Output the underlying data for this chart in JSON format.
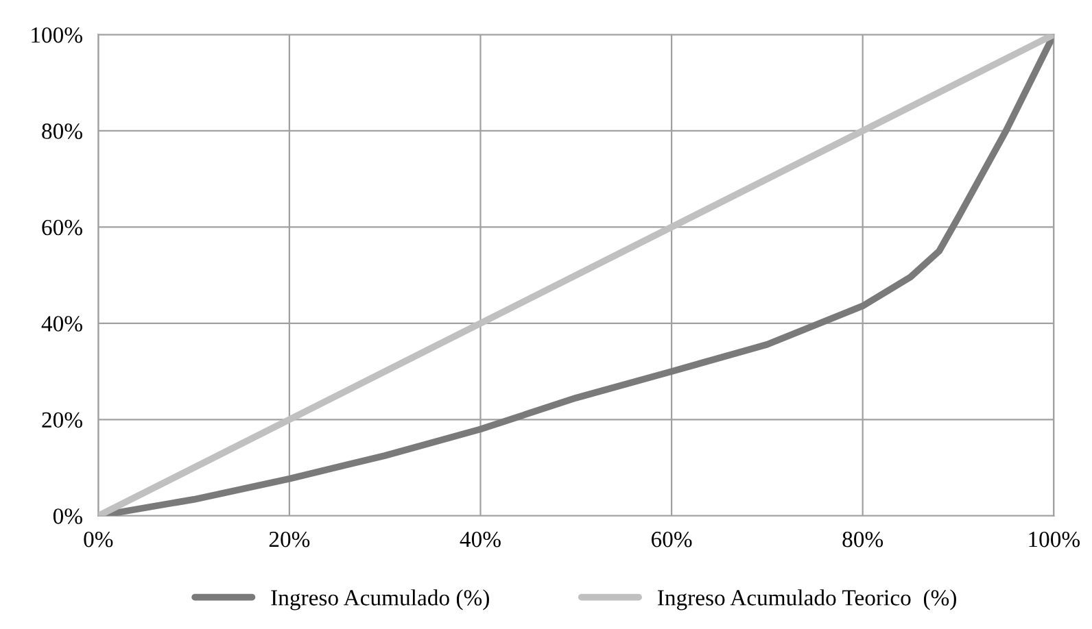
{
  "chart_data": {
    "type": "line",
    "xlim": [
      0,
      100
    ],
    "ylim": [
      0,
      100
    ],
    "xticks": [
      {
        "value": 0,
        "label": "0%"
      },
      {
        "value": 20,
        "label": "20%"
      },
      {
        "value": 40,
        "label": "40%"
      },
      {
        "value": 60,
        "label": "60%"
      },
      {
        "value": 80,
        "label": "80%"
      },
      {
        "value": 100,
        "label": "100%"
      }
    ],
    "yticks": [
      {
        "value": 0,
        "label": "0%"
      },
      {
        "value": 20,
        "label": "20%"
      },
      {
        "value": 40,
        "label": "40%"
      },
      {
        "value": 60,
        "label": "60%"
      },
      {
        "value": 80,
        "label": "80%"
      },
      {
        "value": 100,
        "label": "100%"
      }
    ],
    "grid": true,
    "legend": "bottom",
    "marker": "none",
    "line_style": "solid",
    "series": [
      {
        "name": "Ingreso Acumulado (%)",
        "color": "#7a7a7a",
        "x": [
          0,
          10,
          20,
          30,
          40,
          50,
          60,
          70,
          80,
          85,
          88,
          90,
          95,
          100
        ],
        "values": [
          0,
          3.4,
          7.7,
          12.5,
          18,
          24.5,
          30,
          35.6,
          43.6,
          49.6,
          55,
          62,
          80,
          100
        ]
      },
      {
        "name": "Ingreso Acumulado Teorico  (%)",
        "color": "#c0c0c0",
        "x": [
          0,
          100
        ],
        "values": [
          0,
          100
        ]
      }
    ]
  }
}
